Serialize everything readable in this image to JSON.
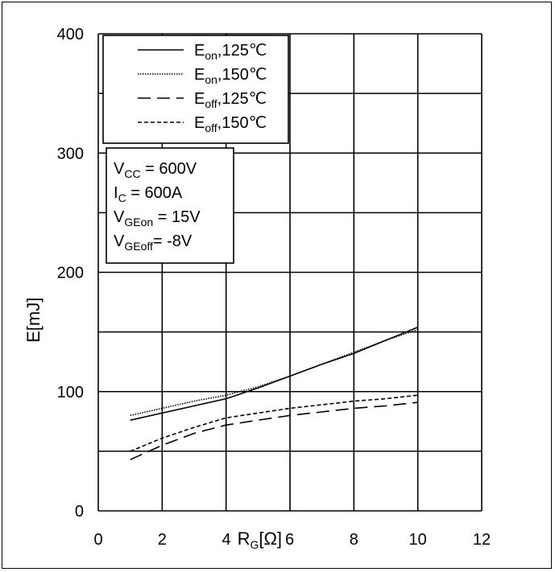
{
  "chart_data": {
    "type": "line",
    "xlabel": {
      "main": "R",
      "sub": "G",
      "rest": "[Ω]"
    },
    "ylabel": "E[mJ]",
    "xlim": [
      0,
      12
    ],
    "ylim": [
      0,
      400
    ],
    "x_ticks": [
      "0",
      "2",
      "4",
      "6",
      "8",
      "10",
      "12"
    ],
    "y_ticks": [
      "0",
      "100",
      "200",
      "300",
      "400"
    ],
    "grid": true,
    "legend_position": "top-left",
    "series": [
      {
        "name": {
          "main": "E",
          "sub": "on",
          "rest": ",125℃"
        },
        "style": "solid",
        "x": [
          1,
          2,
          3,
          4,
          5,
          6,
          7,
          8,
          9,
          10
        ],
        "y": [
          76,
          82,
          88,
          94,
          103,
          113,
          123,
          132,
          143,
          154
        ]
      },
      {
        "name": {
          "main": "E",
          "sub": "on",
          "rest": ",150℃"
        },
        "style": "dotted",
        "x": [
          1,
          2,
          3,
          4,
          5,
          6,
          7,
          8,
          9,
          10
        ],
        "y": [
          80,
          86,
          92,
          97,
          104,
          113,
          123,
          133,
          143,
          152
        ]
      },
      {
        "name": {
          "main": "E",
          "sub": "off",
          "rest": ",125℃"
        },
        "style": "longdash",
        "x": [
          1,
          2,
          3,
          4,
          5,
          6,
          7,
          8,
          9,
          10
        ],
        "y": [
          43,
          55,
          65,
          72,
          76,
          80,
          83,
          86,
          88,
          91
        ]
      },
      {
        "name": {
          "main": "E",
          "sub": "off",
          "rest": ",150℃"
        },
        "style": "shortdash",
        "x": [
          1,
          2,
          3,
          4,
          5,
          6,
          7,
          8,
          9,
          10
        ],
        "y": [
          50,
          61,
          70,
          78,
          82,
          86,
          89,
          92,
          94,
          97
        ]
      }
    ],
    "conditions": [
      {
        "main": "V",
        "sub": "CC",
        "rest": " = 600V"
      },
      {
        "main": "I",
        "sub": "C",
        "rest": " = 600A"
      },
      {
        "main": "V",
        "sub": "GEon",
        "rest": " = 15V"
      },
      {
        "main": "V",
        "sub": "GEoff",
        "rest": "= -8V"
      }
    ]
  }
}
